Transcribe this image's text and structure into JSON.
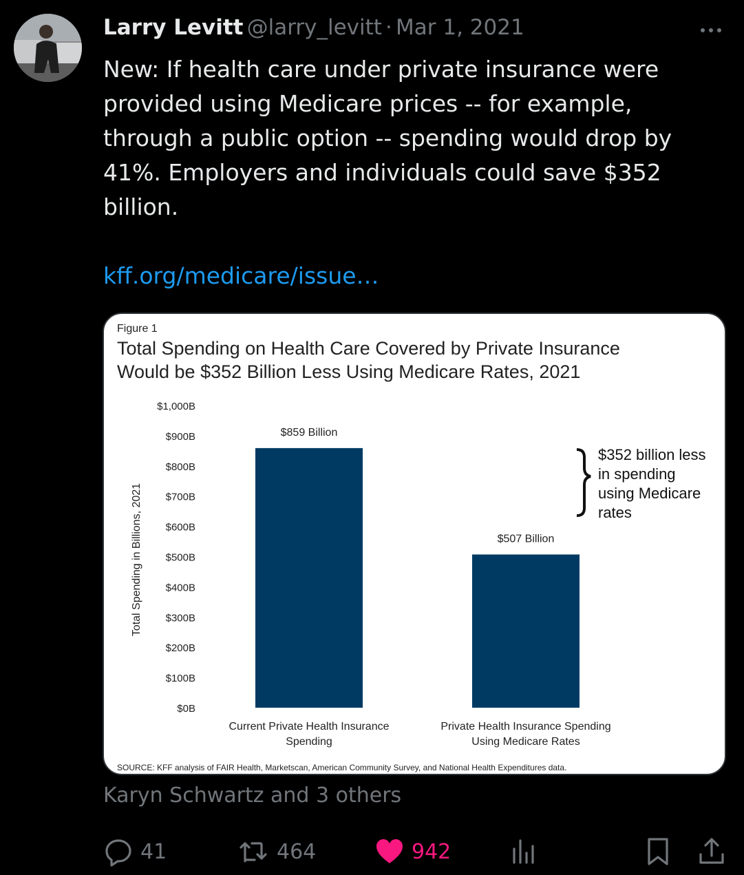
{
  "tweet": {
    "author_name": "Larry Levitt",
    "handle": "@larry_levitt",
    "separator": "·",
    "date": "Mar 1, 2021",
    "text": "New: If health care under private insurance were provided using Medicare prices -- for example, through a public option -- spending would drop by 41%. Employers and individuals could save $352 billion.",
    "link_text": "kff.org/medicare/issue…",
    "social_context": "Karyn Schwartz and 3 others"
  },
  "actions": {
    "replies": "41",
    "retweets": "464",
    "likes": "942"
  },
  "colors": {
    "background": "#000000",
    "text": "#e7e9ea",
    "muted": "#71767b",
    "link": "#1d9bf0",
    "like": "#f91880",
    "bar": "#003a63"
  },
  "icons": [
    "more-icon",
    "reply-icon",
    "retweet-icon",
    "heart-icon",
    "analytics-icon",
    "bookmark-icon",
    "share-icon"
  ],
  "chart_data": {
    "type": "bar",
    "figure_label": "Figure 1",
    "title_line1": "Total Spending on Health Care Covered by Private Insurance",
    "title_line2": "Would be $352 Billion Less Using Medicare Rates, 2021",
    "ylabel": "Total Spending in Billions, 2021",
    "ylim": [
      0,
      1000
    ],
    "yticks": [
      {
        "value": 0,
        "label": "$0B"
      },
      {
        "value": 100,
        "label": "$100B"
      },
      {
        "value": 200,
        "label": "$200B"
      },
      {
        "value": 300,
        "label": "$300B"
      },
      {
        "value": 400,
        "label": "$400B"
      },
      {
        "value": 500,
        "label": "$500B"
      },
      {
        "value": 600,
        "label": "$600B"
      },
      {
        "value": 700,
        "label": "$700B"
      },
      {
        "value": 800,
        "label": "$800B"
      },
      {
        "value": 900,
        "label": "$900B"
      },
      {
        "value": 1000,
        "label": "$1,000B"
      }
    ],
    "categories": [
      [
        "Current Private Health Insurance",
        "Spending"
      ],
      [
        "Private Health Insurance Spending",
        "Using Medicare Rates"
      ]
    ],
    "values": [
      859,
      507
    ],
    "data_labels": [
      "$859 Billion",
      "$507 Billion"
    ],
    "annotation": [
      "$352 billion less",
      "in spending",
      "using Medicare",
      "rates"
    ],
    "source": "SOURCE: KFF analysis of FAIR Health, Marketscan, American Community Survey, and National Health Expenditures data."
  }
}
